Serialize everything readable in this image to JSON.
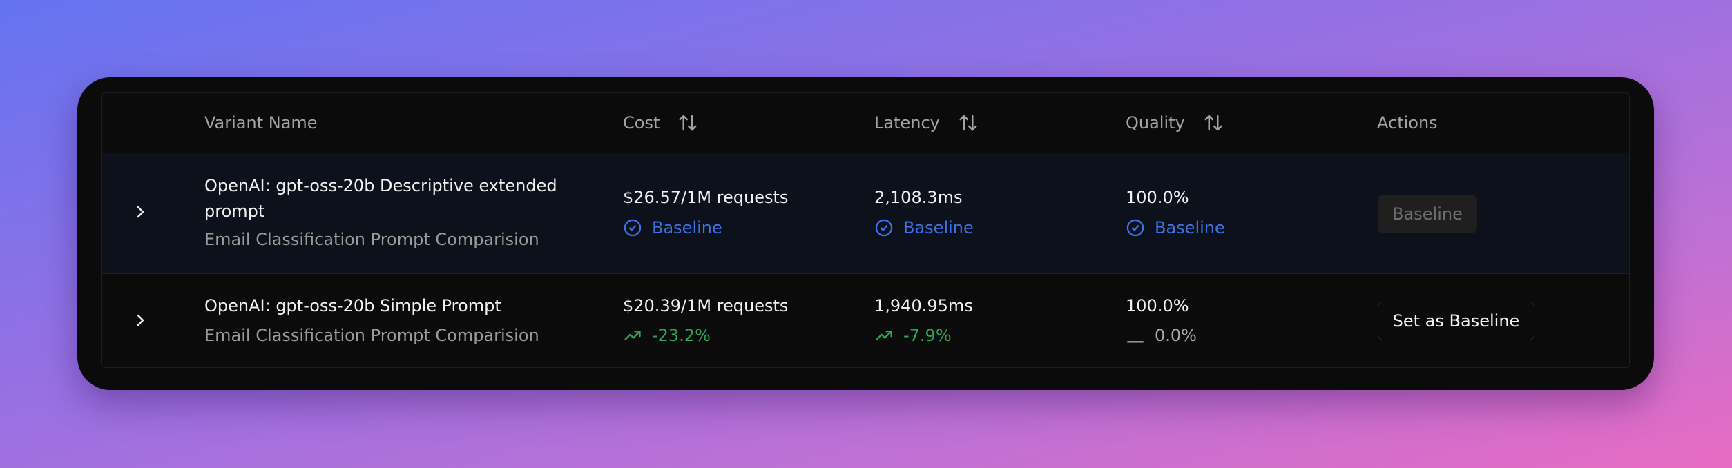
{
  "table": {
    "headers": [
      "Variant Name",
      "Cost",
      "Latency",
      "Quality",
      "Actions"
    ],
    "rows": [
      {
        "name": "OpenAI: gpt-oss-20b Descriptive extended prompt",
        "subtitle": "Email Classification Prompt Comparision",
        "cost": "$26.57/1M requests",
        "cost_delta": "Baseline",
        "latency": "2,108.3ms",
        "latency_delta": "Baseline",
        "quality": "100.0%",
        "quality_delta": "Baseline",
        "action": "Baseline"
      },
      {
        "name": "OpenAI: gpt-oss-20b Simple Prompt",
        "subtitle": "Email Classification Prompt Comparision",
        "cost": "$20.39/1M requests",
        "cost_delta": "-23.2%",
        "latency": "1,940.95ms",
        "latency_delta": "-7.9%",
        "quality": "100.0%",
        "quality_delta": "0.0%",
        "action": "Set as Baseline"
      }
    ]
  }
}
